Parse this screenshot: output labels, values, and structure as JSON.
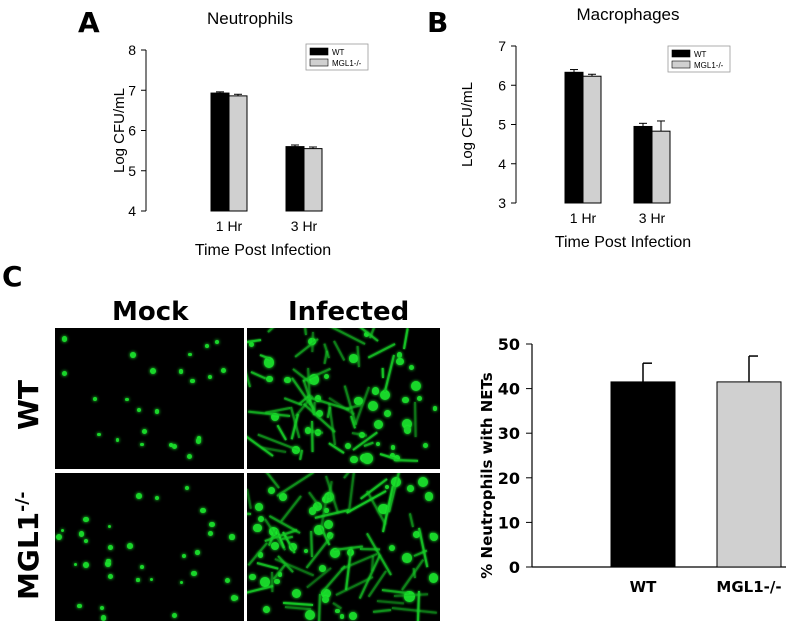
{
  "panels": {
    "a": "A",
    "b": "B",
    "c": "C"
  },
  "charts": {
    "neutrophils": {
      "type": "bar",
      "title": "Neutrophils",
      "xlabel": "Time Post Infection",
      "ylabel": "Log CFU/mL",
      "categories": [
        "1 Hr",
        "3 Hr"
      ],
      "ylim": [
        4,
        8
      ],
      "yticks": [
        "4",
        "5",
        "6",
        "7",
        "8"
      ],
      "series": [
        {
          "name": "WT",
          "color": "#000000",
          "values": [
            6.93,
            5.6
          ],
          "errors": [
            0.03,
            0.04
          ]
        },
        {
          "name": "MGL1-/-",
          "color": "#d0d0d0",
          "values": [
            6.86,
            5.55
          ],
          "errors": [
            0.04,
            0.04
          ]
        }
      ]
    },
    "macrophages": {
      "type": "bar",
      "title": "Macrophages",
      "xlabel": "Time Post Infection",
      "ylabel": "Log CFU/mL",
      "categories": [
        "1 Hr",
        "3 Hr"
      ],
      "ylim": [
        3,
        7
      ],
      "yticks": [
        "3",
        "4",
        "5",
        "6",
        "7"
      ],
      "series": [
        {
          "name": "WT",
          "color": "#000000",
          "values": [
            6.33,
            4.95
          ],
          "errors": [
            0.07,
            0.08
          ]
        },
        {
          "name": "MGL1-/-",
          "color": "#d0d0d0",
          "values": [
            6.23,
            4.83
          ],
          "errors": [
            0.05,
            0.26
          ]
        }
      ]
    },
    "nets": {
      "type": "bar",
      "title": "",
      "xlabel": "",
      "ylabel": "% Neutrophils with NETs",
      "categories": [
        "WT",
        "MGL1-/-"
      ],
      "ylim": [
        0,
        50
      ],
      "yticks": [
        "0",
        "10",
        "20",
        "30",
        "40",
        "50"
      ],
      "series": [
        {
          "name": "",
          "colors": [
            "#000000",
            "#d0d0d0"
          ],
          "values": [
            41.5,
            41.5
          ],
          "errors": [
            4.2,
            5.8
          ]
        }
      ]
    }
  },
  "chart_data": [
    {
      "type": "bar",
      "title": "Neutrophils",
      "xlabel": "Time Post Infection",
      "ylabel": "Log CFU/mL",
      "categories": [
        "1 Hr",
        "3 Hr"
      ],
      "ylim": [
        4,
        8
      ],
      "legend": "top-right",
      "series": [
        {
          "name": "WT",
          "values": [
            6.93,
            5.6
          ]
        },
        {
          "name": "MGL1-/-",
          "values": [
            6.86,
            5.55
          ]
        }
      ]
    },
    {
      "type": "bar",
      "title": "Macrophages",
      "xlabel": "Time Post Infection",
      "ylabel": "Log CFU/mL",
      "categories": [
        "1 Hr",
        "3 Hr"
      ],
      "ylim": [
        3,
        7
      ],
      "legend": "top-right",
      "series": [
        {
          "name": "WT",
          "values": [
            6.33,
            4.95
          ]
        },
        {
          "name": "MGL1-/-",
          "values": [
            6.23,
            4.83
          ]
        }
      ]
    },
    {
      "type": "bar",
      "title": "",
      "xlabel": "",
      "ylabel": "% Neutrophils with NETs",
      "categories": [
        "WT",
        "MGL1-/-"
      ],
      "ylim": [
        0,
        50
      ],
      "series": [
        {
          "values": [
            41.5,
            41.5
          ]
        }
      ]
    }
  ],
  "microscopy": {
    "columns": [
      "Mock",
      "Infected"
    ],
    "rows": [
      {
        "label": "WT",
        "sup": ""
      },
      {
        "label": "MGL1",
        "sup": "-/-"
      }
    ],
    "cell_color": "#19d62a"
  }
}
